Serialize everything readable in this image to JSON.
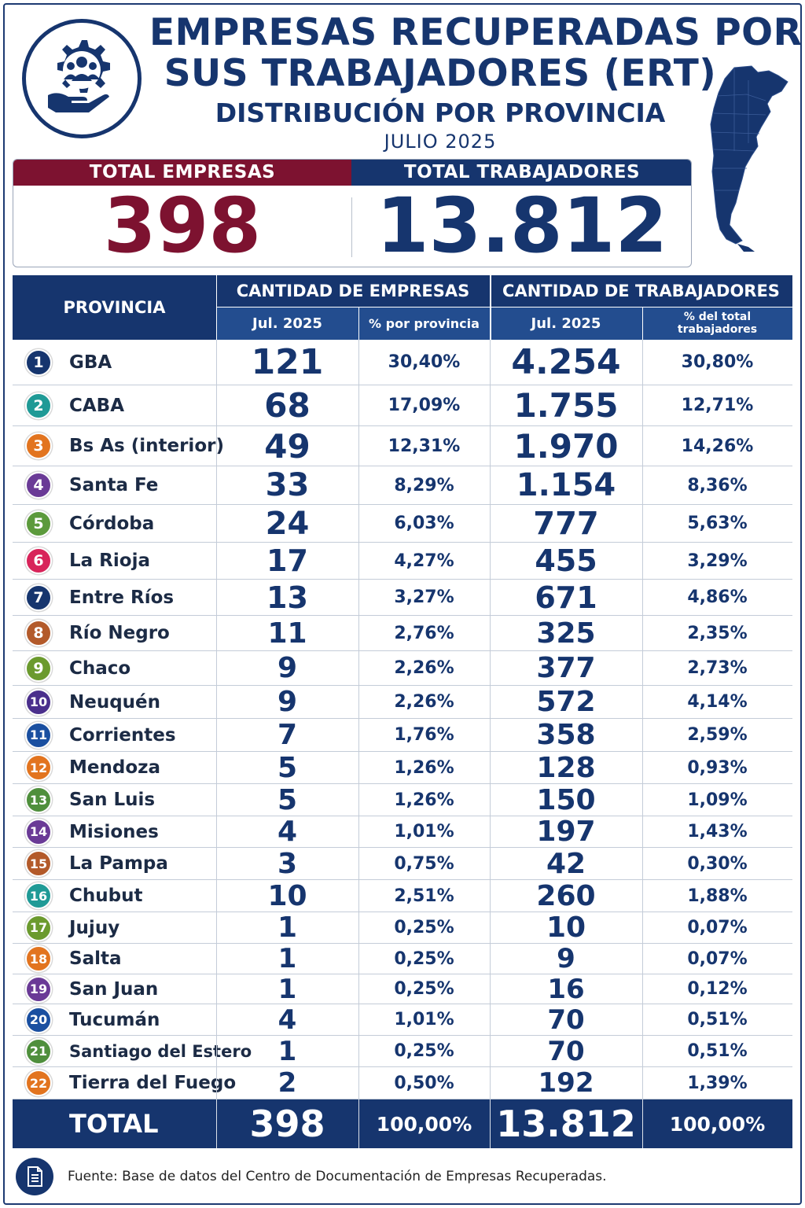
{
  "header": {
    "title_line1": "EMPRESAS RECUPERADAS POR",
    "title_line2": "SUS TRABAJADORES (ERT)",
    "subtitle": "DISTRIBUCIÓN POR PROVINCIA",
    "date": "JULIO 2025"
  },
  "totals": {
    "empresas_label": "TOTAL EMPRESAS",
    "empresas_value": "398",
    "trabajadores_label": "TOTAL TRABAJADORES",
    "trabajadores_value": "13.812"
  },
  "colors": {
    "navy": "#16356e",
    "maroon": "#7d1230"
  },
  "chart_data": {
    "type": "table",
    "columns": {
      "provincia": "PROVINCIA",
      "empresas_group": "CANTIDAD DE EMPRESAS",
      "trabajadores_group": "CANTIDAD DE TRABAJADORES",
      "empresas_month": "Jul. 2025",
      "empresas_pct": "% por provincia",
      "trabajadores_month": "Jul. 2025",
      "trabajadores_pct_line1": "% del total",
      "trabajadores_pct_line2": "trabajadores"
    },
    "rows": [
      {
        "n": "1",
        "provincia": "GBA",
        "empresas": "121",
        "pct_empresas": "30,40%",
        "trabajadores": "4.254",
        "pct_trabajadores": "30,80%",
        "color": "#16356e"
      },
      {
        "n": "2",
        "provincia": "CABA",
        "empresas": "68",
        "pct_empresas": "17,09%",
        "trabajadores": "1.755",
        "pct_trabajadores": "12,71%",
        "color": "#1f9a96"
      },
      {
        "n": "3",
        "provincia": "Bs As (interior)",
        "empresas": "49",
        "pct_empresas": "12,31%",
        "trabajadores": "1.970",
        "pct_trabajadores": "14,26%",
        "color": "#e2741f"
      },
      {
        "n": "4",
        "provincia": "Santa Fe",
        "empresas": "33",
        "pct_empresas": "8,29%",
        "trabajadores": "1.154",
        "pct_trabajadores": "8,36%",
        "color": "#6a3a96"
      },
      {
        "n": "5",
        "provincia": "Córdoba",
        "empresas": "24",
        "pct_empresas": "6,03%",
        "trabajadores": "777",
        "pct_trabajadores": "5,63%",
        "color": "#5c9a3c"
      },
      {
        "n": "6",
        "provincia": "La Rioja",
        "empresas": "17",
        "pct_empresas": "4,27%",
        "trabajadores": "455",
        "pct_trabajadores": "3,29%",
        "color": "#d8245a"
      },
      {
        "n": "7",
        "provincia": "Entre Ríos",
        "empresas": "13",
        "pct_empresas": "3,27%",
        "trabajadores": "671",
        "pct_trabajadores": "4,86%",
        "color": "#16356e"
      },
      {
        "n": "8",
        "provincia": "Río Negro",
        "empresas": "11",
        "pct_empresas": "2,76%",
        "trabajadores": "325",
        "pct_trabajadores": "2,35%",
        "color": "#b35a2a"
      },
      {
        "n": "9",
        "provincia": "Chaco",
        "empresas": "9",
        "pct_empresas": "2,26%",
        "trabajadores": "377",
        "pct_trabajadores": "2,73%",
        "color": "#6b9a2e"
      },
      {
        "n": "10",
        "provincia": "Neuquén",
        "empresas": "9",
        "pct_empresas": "2,26%",
        "trabajadores": "572",
        "pct_trabajadores": "4,14%",
        "color": "#4a2f8c"
      },
      {
        "n": "11",
        "provincia": "Corrientes",
        "empresas": "7",
        "pct_empresas": "1,76%",
        "trabajadores": "358",
        "pct_trabajadores": "2,59%",
        "color": "#1a4fa0"
      },
      {
        "n": "12",
        "provincia": "Mendoza",
        "empresas": "5",
        "pct_empresas": "1,26%",
        "trabajadores": "128",
        "pct_trabajadores": "0,93%",
        "color": "#e2741f"
      },
      {
        "n": "13",
        "provincia": "San Luis",
        "empresas": "5",
        "pct_empresas": "1,26%",
        "trabajadores": "150",
        "pct_trabajadores": "1,09%",
        "color": "#4f8f3c"
      },
      {
        "n": "14",
        "provincia": "Misiones",
        "empresas": "4",
        "pct_empresas": "1,01%",
        "trabajadores": "197",
        "pct_trabajadores": "1,43%",
        "color": "#6a3a96"
      },
      {
        "n": "15",
        "provincia": "La Pampa",
        "empresas": "3",
        "pct_empresas": "0,75%",
        "trabajadores": "42",
        "pct_trabajadores": "0,30%",
        "color": "#b35a2a"
      },
      {
        "n": "16",
        "provincia": "Chubut",
        "empresas": "10",
        "pct_empresas": "2,51%",
        "trabajadores": "260",
        "pct_trabajadores": "1,88%",
        "color": "#1f9a96"
      },
      {
        "n": "17",
        "provincia": "Jujuy",
        "empresas": "1",
        "pct_empresas": "0,25%",
        "trabajadores": "10",
        "pct_trabajadores": "0,07%",
        "color": "#6b9a2e"
      },
      {
        "n": "18",
        "provincia": "Salta",
        "empresas": "1",
        "pct_empresas": "0,25%",
        "trabajadores": "9",
        "pct_trabajadores": "0,07%",
        "color": "#e2741f"
      },
      {
        "n": "19",
        "provincia": "San Juan",
        "empresas": "1",
        "pct_empresas": "0,25%",
        "trabajadores": "16",
        "pct_trabajadores": "0,12%",
        "color": "#6a3a96"
      },
      {
        "n": "20",
        "provincia": "Tucumán",
        "empresas": "4",
        "pct_empresas": "1,01%",
        "trabajadores": "70",
        "pct_trabajadores": "0,51%",
        "color": "#1a4fa0"
      },
      {
        "n": "21",
        "provincia": "Santiago del Estero",
        "empresas": "1",
        "pct_empresas": "0,25%",
        "trabajadores": "70",
        "pct_trabajadores": "0,51%",
        "color": "#4f8f3c"
      },
      {
        "n": "22",
        "provincia": "Tierra del Fuego",
        "empresas": "2",
        "pct_empresas": "0,50%",
        "trabajadores": "192",
        "pct_trabajadores": "1,39%",
        "color": "#e2741f"
      }
    ],
    "total": {
      "label": "TOTAL",
      "empresas": "398",
      "pct_empresas": "100,00%",
      "trabajadores": "13.812",
      "pct_trabajadores": "100,00%"
    }
  },
  "footer": {
    "source": "Fuente: Base de datos del Centro de Documentación de Empresas Recuperadas.",
    "icon": "document-icon"
  }
}
